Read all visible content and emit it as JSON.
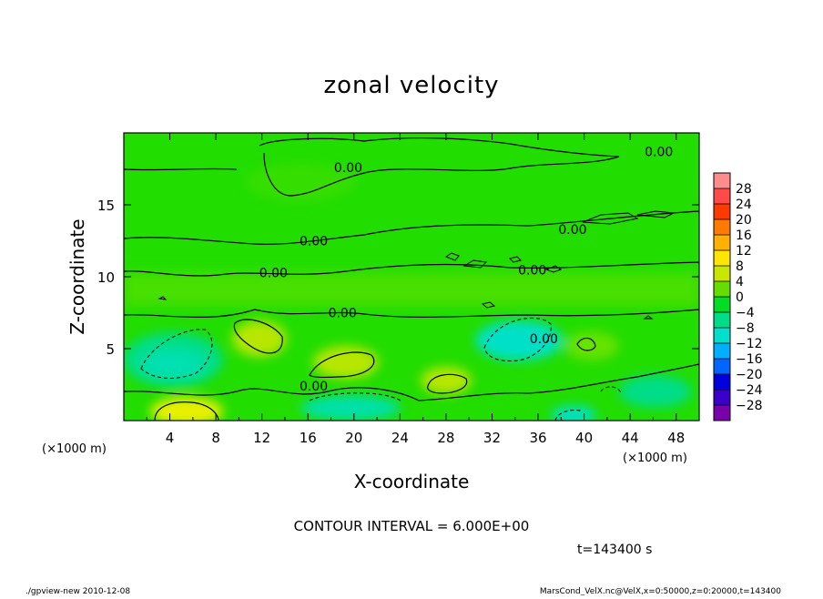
{
  "chart_data": {
    "type": "heatmap",
    "title": "zonal velocity",
    "xlabel": "X-coordinate",
    "ylabel": "Z-coordinate",
    "x_unit_left": "(×1000 m)",
    "x_unit_right": "(×1000 m)",
    "xlim": [
      0,
      50
    ],
    "ylim": [
      0,
      20
    ],
    "x_ticks": [
      4,
      8,
      12,
      16,
      20,
      24,
      28,
      32,
      36,
      40,
      44,
      48
    ],
    "x_tick_labels": [
      "4",
      "8",
      "12",
      "16",
      "20",
      "24",
      "28",
      "32",
      "36",
      "40",
      "44",
      "48"
    ],
    "y_ticks": [
      5,
      10,
      15
    ],
    "y_tick_labels": [
      "5",
      "10",
      "15"
    ],
    "colorbar": {
      "levels": [
        28,
        24,
        20,
        16,
        12,
        8,
        4,
        0,
        -4,
        -8,
        -12,
        -16,
        -20,
        -24,
        -28
      ],
      "labels": [
        "28",
        "24",
        "20",
        "16",
        "12",
        "8",
        "4",
        "0",
        "−4",
        "−8",
        "−12",
        "−16",
        "−20",
        "−24",
        "−28"
      ],
      "colors": [
        "#ff8c8c",
        "#ff4a4a",
        "#ff3a00",
        "#ff7a00",
        "#ffb000",
        "#ffe600",
        "#c8e600",
        "#66dd00",
        "#00dd22",
        "#00dd88",
        "#00e0cc",
        "#00b0ff",
        "#0066ff",
        "#0000dd",
        "#3a00cc",
        "#7a00aa"
      ]
    },
    "contour_labels": [
      {
        "x": 19.5,
        "z": 17.4,
        "text": "0.00"
      },
      {
        "x": 46.5,
        "z": 18.5,
        "text": "0.00"
      },
      {
        "x": 16.5,
        "z": 12.3,
        "text": "0.00"
      },
      {
        "x": 39.0,
        "z": 13.1,
        "text": "0.00"
      },
      {
        "x": 13.0,
        "z": 10.1,
        "text": "0.00"
      },
      {
        "x": 35.5,
        "z": 10.3,
        "text": "0.00"
      },
      {
        "x": 19.0,
        "z": 7.3,
        "text": "0.00"
      },
      {
        "x": 36.5,
        "z": 5.5,
        "text": "0.00"
      },
      {
        "x": 16.5,
        "z": 2.2,
        "text": "0.00"
      }
    ],
    "annotations": {
      "contour_interval": "CONTOUR INTERVAL = 6.000E+00",
      "time": "t=143400 s",
      "footer_left": "./gpview-new  2010-12-08",
      "footer_right": "MarsCond_VelX.nc@VelX,x=0:50000,z=0:20000,t=143400"
    },
    "colors": {
      "background_field": "#22dd00",
      "positive_blobs": "#88e800",
      "strong_positive": "#e8f000",
      "negative_blobs": "#00e0aa",
      "strong_negative": "#00e8e0"
    }
  }
}
